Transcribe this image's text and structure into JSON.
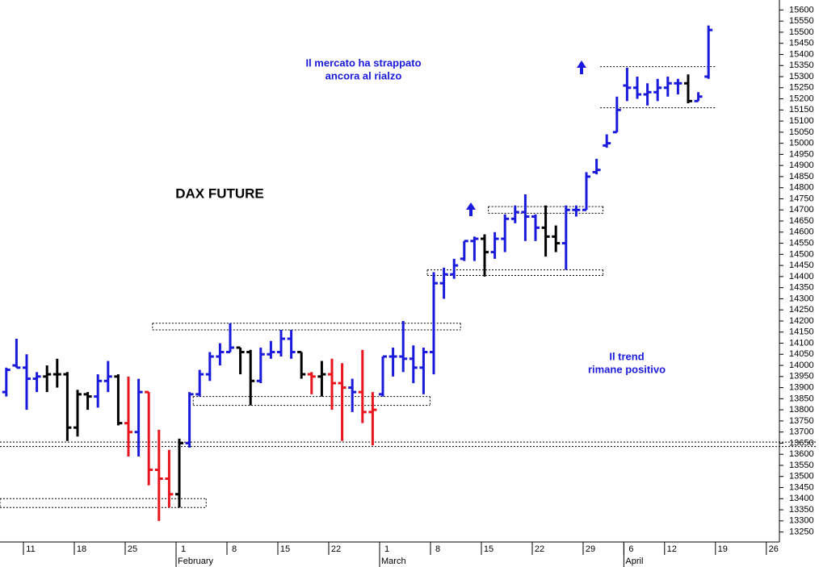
{
  "chart_data": {
    "type": "ohlc",
    "title": "DAX FUTURE",
    "annotations": [
      [
        "Il mercato ha strappato",
        "ancora al rialzo"
      ],
      [
        "Il trend",
        "rimane positivo"
      ]
    ],
    "months": [
      "February",
      "March",
      "April"
    ],
    "categories": [
      null,
      null,
      "11",
      null,
      null,
      null,
      null,
      "18",
      null,
      null,
      null,
      null,
      "25",
      null,
      null,
      null,
      null,
      "1",
      null,
      null,
      null,
      null,
      "8",
      null,
      null,
      null,
      null,
      "15",
      null,
      null,
      null,
      null,
      "22",
      null,
      null,
      null,
      null,
      "1",
      null,
      null,
      null,
      null,
      "8",
      null,
      null,
      null,
      null,
      "15",
      null,
      null,
      null,
      null,
      "22",
      null,
      null,
      null,
      null,
      "29",
      null,
      null,
      null,
      "6",
      null,
      null,
      null,
      "12",
      null,
      null,
      null,
      null,
      "19",
      null,
      null,
      null,
      null,
      "26",
      null,
      null,
      null,
      null
    ],
    "open": [
      13880,
      14000,
      13990,
      13940,
      13950,
      13960,
      13960,
      13720,
      13870,
      13860,
      13930,
      13950,
      13740,
      13700,
      13880,
      13530,
      13490,
      13420,
      13650,
      13870,
      13960,
      14040,
      14060,
      14080,
      14060,
      13930,
      14050,
      14060,
      14120,
      14060,
      13960,
      13950,
      13960,
      13920,
      13900,
      13880,
      13790,
      13870,
      14040,
      14040,
      14030,
      13990,
      14060,
      14370,
      14410,
      14480,
      14560,
      14570,
      14510,
      14570,
      14660,
      14690,
      14670,
      14620,
      14580,
      14550,
      14700,
      14700,
      14870,
      14990,
      15050,
      15260,
      15250,
      15220,
      15230,
      15250,
      15270,
      15270,
      15190,
      15300,
      null,
      null,
      null,
      null,
      null,
      null,
      null,
      null,
      null,
      null
    ],
    "high": [
      13990,
      14120,
      14050,
      13970,
      14000,
      14030,
      13970,
      13890,
      13880,
      13960,
      14020,
      13960,
      13950,
      13940,
      13880,
      13710,
      13620,
      13670,
      13880,
      13980,
      14060,
      14100,
      14190,
      14080,
      14070,
      14080,
      14110,
      14160,
      14160,
      14060,
      13970,
      14020,
      14030,
      14010,
      13940,
      14070,
      13880,
      14040,
      14080,
      14200,
      14090,
      14080,
      14420,
      14440,
      14480,
      14560,
      14580,
      14590,
      14600,
      14680,
      14720,
      14770,
      14680,
      14720,
      14630,
      14720,
      14720,
      14870,
      14930,
      15040,
      15210,
      15340,
      15300,
      15270,
      15290,
      15300,
      15290,
      15310,
      15230,
      15530,
      null,
      null,
      null,
      null,
      null,
      null,
      null,
      null,
      null,
      null
    ],
    "low": [
      13860,
      13990,
      13800,
      13880,
      13880,
      13900,
      13660,
      13680,
      13800,
      13810,
      13880,
      13730,
      13590,
      13590,
      13460,
      13300,
      13360,
      13360,
      13630,
      13860,
      13930,
      14000,
      14060,
      13960,
      13820,
      13920,
      14030,
      14040,
      14030,
      13940,
      13870,
      13860,
      13800,
      13660,
      13790,
      13740,
      13640,
      13860,
      13950,
      13970,
      13920,
      13870,
      13960,
      14300,
      14390,
      14470,
      14470,
      14400,
      14480,
      14510,
      14640,
      14560,
      14560,
      14490,
      14510,
      14430,
      14670,
      14700,
      14860,
      14980,
      15050,
      15190,
      15200,
      15170,
      15190,
      15210,
      15220,
      15180,
      15190,
      15290,
      null,
      null,
      null,
      null,
      null,
      null,
      null,
      null,
      null,
      null
    ],
    "close": [
      13980,
      13990,
      13940,
      13950,
      13960,
      13960,
      13720,
      13870,
      13860,
      13930,
      13950,
      13740,
      13700,
      13880,
      13530,
      13490,
      13420,
      13650,
      13870,
      13960,
      14040,
      14060,
      14080,
      14060,
      13930,
      14050,
      14060,
      14120,
      14060,
      13960,
      13950,
      13960,
      13920,
      13900,
      13880,
      13790,
      13800,
      14040,
      14040,
      14030,
      13990,
      14060,
      14370,
      14410,
      14450,
      14560,
      14570,
      14510,
      14570,
      14660,
      14690,
      14670,
      14620,
      14580,
      14550,
      14700,
      14700,
      14850,
      14880,
      15000,
      15150,
      15250,
      15220,
      15230,
      15250,
      15270,
      15270,
      15190,
      15210,
      15510,
      null,
      null,
      null,
      null,
      null,
      null,
      null,
      null,
      null,
      null
    ],
    "colors": [
      "#1a1adc",
      "#1a1adc",
      "#1a1adc",
      "#1a1adc",
      "#000000",
      "#000000",
      "#000000",
      "#000000",
      "#000000",
      "#1a1adc",
      "#1a1adc",
      "#000000",
      "#e8141e",
      "#1a1adc",
      "#e8141e",
      "#e8141e",
      "#e8141e",
      "#000000",
      "#1a1adc",
      "#1a1adc",
      "#1a1adc",
      "#1a1adc",
      "#1a1adc",
      "#000000",
      "#000000",
      "#1a1adc",
      "#1a1adc",
      "#1a1adc",
      "#1a1adc",
      "#000000",
      "#e8141e",
      "#000000",
      "#e8141e",
      "#e8141e",
      "#1a1adc",
      "#e8141e",
      "#e8141e",
      "#1a1adc",
      "#1a1adc",
      "#1a1adc",
      "#1a1adc",
      "#1a1adc",
      "#1a1adc",
      "#1a1adc",
      "#1a1adc",
      "#1a1adc",
      "#1a1adc",
      "#000000",
      "#1a1adc",
      "#1a1adc",
      "#1a1adc",
      "#1a1adc",
      "#1a1adc",
      "#000000",
      "#000000",
      "#1a1adc",
      "#1a1adc",
      "#1a1adc",
      "#1a1adc",
      "#1a1adc",
      "#1a1adc",
      "#1a1adc",
      "#1a1adc",
      "#1a1adc",
      "#1a1adc",
      "#1a1adc",
      "#1a1adc",
      "#000000",
      "#1a1adc",
      "#1a1adc",
      null,
      null,
      null,
      null,
      null,
      null,
      null,
      null,
      null,
      null
    ],
    "zones": [
      {
        "x": [
          0,
          19
        ],
        "y": [
          13360,
          13400
        ],
        "closed": true
      },
      {
        "x": [
          0,
          79
        ],
        "y": [
          13635,
          13655
        ],
        "closed": false
      },
      {
        "x": [
          15,
          44
        ],
        "y": [
          14160,
          14190
        ],
        "closed": true
      },
      {
        "x": [
          19,
          41
        ],
        "y": [
          13820,
          13860
        ],
        "closed": true
      },
      {
        "x": [
          42,
          58
        ],
        "y": [
          14405,
          14430
        ],
        "closed": true
      },
      {
        "x": [
          48,
          58
        ],
        "y": [
          14685,
          14715
        ],
        "closed": true
      },
      {
        "x": [
          59,
          69
        ],
        "y": [
          15160,
          15345
        ],
        "closed": false
      }
    ],
    "ylim": [
      13205,
      15645
    ],
    "yticks": [
      13250,
      13300,
      13350,
      13400,
      13450,
      13500,
      13550,
      13600,
      13650,
      13700,
      13750,
      13800,
      13850,
      13900,
      13950,
      14000,
      14050,
      14100,
      14150,
      14200,
      14250,
      14300,
      14350,
      14400,
      14450,
      14500,
      14550,
      14600,
      14650,
      14700,
      14750,
      14800,
      14850,
      14900,
      14950,
      15000,
      15050,
      15100,
      15150,
      15200,
      15250,
      15300,
      15350,
      15400,
      15450,
      15500,
      15550,
      15600
    ]
  }
}
